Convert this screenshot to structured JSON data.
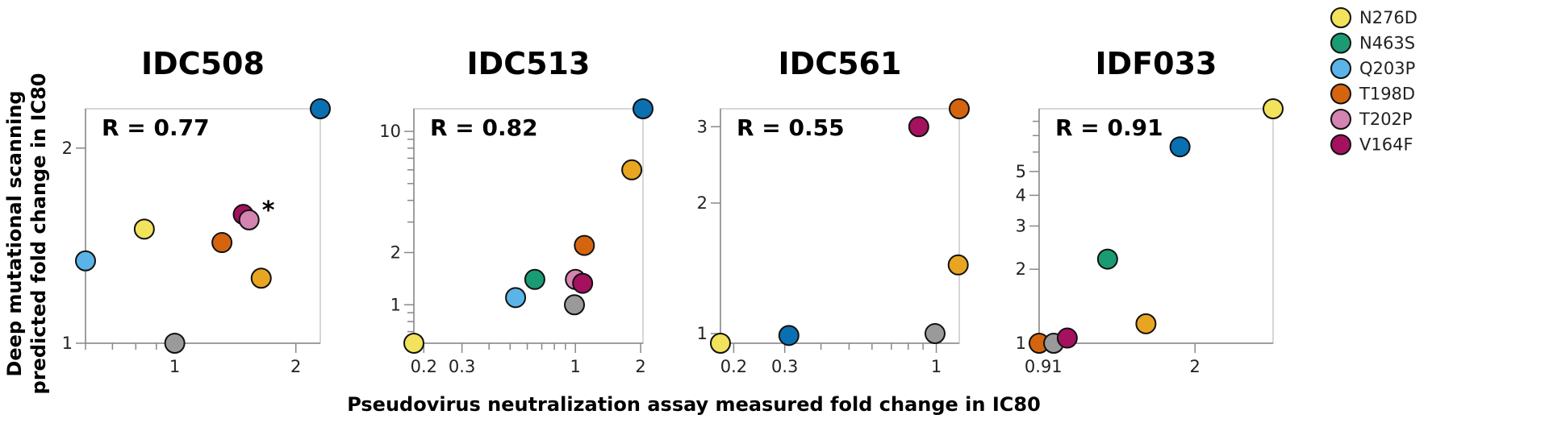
{
  "chart_data": {
    "type": "scatter",
    "xlabel": "Pseudovirus neutralization assay measured fold change in IC80",
    "ylabel": [
      "Deep mutational scanning",
      "predicted fold change in IC80"
    ],
    "scale": "log",
    "grid": false,
    "legend_position": "right",
    "colors": {
      "N276D": "#f2e25c",
      "N463S": "#1a9b73",
      "Q203P": "#5ab4e8",
      "T198D": "#d5640f",
      "T202P": "#d583b0",
      "V164F": "#a4115e",
      "unlabeled_orange": "#e8a521",
      "unlabeled_blue": "#0b70b2",
      "unlabeled_gray": "#9a9a9a"
    },
    "legend": [
      "N276D",
      "N463S",
      "Q203P",
      "T198D",
      "T202P",
      "V164F"
    ],
    "panels": [
      {
        "title": "IDC508",
        "r_label": "R  = 0.77",
        "xlim": [
          0.6,
          2.3
        ],
        "ylim": [
          1.0,
          2.3
        ],
        "xticks_major": [
          1,
          2
        ],
        "xtick_labels": [
          "1",
          "2"
        ],
        "xticks_minor": [
          0.6,
          0.7,
          0.8,
          0.9,
          1,
          2
        ],
        "yticks_major": [
          1,
          2
        ],
        "ytick_labels": [
          "1",
          "2"
        ],
        "yticks_minor": [],
        "points": [
          {
            "key": "N276D",
            "x": 0.84,
            "y": 1.5
          },
          {
            "key": "Q203P",
            "x": 0.6,
            "y": 1.34
          },
          {
            "key": "T198D",
            "x": 1.31,
            "y": 1.43
          },
          {
            "key": "V164F",
            "x": 1.48,
            "y": 1.58
          },
          {
            "key": "T202P",
            "x": 1.53,
            "y": 1.55,
            "annotation": "*"
          },
          {
            "key": "unlabeled_orange",
            "x": 1.64,
            "y": 1.26
          },
          {
            "key": "unlabeled_gray",
            "x": 1.0,
            "y": 1.0
          },
          {
            "key": "unlabeled_blue",
            "x": 2.3,
            "y": 2.3
          }
        ]
      },
      {
        "title": "IDC513",
        "r_label": "R  = 0.82",
        "xlim": [
          0.18,
          2.05
        ],
        "ylim": [
          0.6,
          13.5
        ],
        "xticks_major": [
          0.2,
          0.3,
          1,
          2
        ],
        "xtick_labels": [
          "0.2",
          "0.3",
          "1",
          "2"
        ],
        "xticks_minor": [
          0.4,
          0.5,
          0.6,
          0.7,
          0.8,
          0.9
        ],
        "yticks_major": [
          1,
          2,
          10
        ],
        "ytick_labels": [
          "1",
          "2",
          "10"
        ],
        "yticks_minor": [
          0.7,
          0.8,
          0.9,
          3,
          4,
          5,
          6,
          7,
          8,
          9
        ],
        "points": [
          {
            "key": "N276D",
            "x": 0.18,
            "y": 0.6
          },
          {
            "key": "Q203P",
            "x": 0.53,
            "y": 1.1
          },
          {
            "key": "N463S",
            "x": 0.65,
            "y": 1.4
          },
          {
            "key": "unlabeled_gray",
            "x": 0.99,
            "y": 1.0
          },
          {
            "key": "T202P",
            "x": 1.0,
            "y": 1.4
          },
          {
            "key": "V164F",
            "x": 1.08,
            "y": 1.33
          },
          {
            "key": "T198D",
            "x": 1.1,
            "y": 2.2
          },
          {
            "key": "unlabeled_orange",
            "x": 1.82,
            "y": 6.0
          },
          {
            "key": "unlabeled_blue",
            "x": 2.05,
            "y": 13.5
          }
        ]
      },
      {
        "title": "IDC561",
        "r_label": "R  = 0.55",
        "xlim": [
          0.18,
          1.2
        ],
        "ylim": [
          0.95,
          3.3
        ],
        "xticks_major": [
          0.2,
          0.3,
          1
        ],
        "xtick_labels": [
          "0.2",
          "0.3",
          "1"
        ],
        "xticks_minor": [
          0.4,
          0.5,
          0.6,
          0.7,
          0.8,
          0.9
        ],
        "yticks_major": [
          1,
          2,
          3
        ],
        "ytick_labels": [
          "1",
          "2",
          "3"
        ],
        "yticks_minor": [],
        "points": [
          {
            "key": "N276D",
            "x": 0.18,
            "y": 0.95
          },
          {
            "key": "unlabeled_blue",
            "x": 0.31,
            "y": 0.99
          },
          {
            "key": "V164F",
            "x": 0.87,
            "y": 3.0
          },
          {
            "key": "T198D",
            "x": 1.2,
            "y": 3.3
          },
          {
            "key": "unlabeled_orange",
            "x": 1.19,
            "y": 1.44
          },
          {
            "key": "unlabeled_gray",
            "x": 0.99,
            "y": 1.0
          }
        ]
      },
      {
        "title": "IDF033",
        "r_label": "R  = 0.91",
        "xlim": [
          0.89,
          3.0
        ],
        "ylim": [
          1.0,
          9.0
        ],
        "xticks_major": [
          0.91,
          2
        ],
        "xtick_labels": [
          "0.91",
          "2"
        ],
        "xticks_minor": [],
        "yticks_major": [
          1,
          2,
          3,
          4,
          5
        ],
        "ytick_labels": [
          "1",
          "2",
          "3",
          "4",
          "5"
        ],
        "yticks_minor": [
          6,
          7,
          8
        ],
        "points": [
          {
            "key": "T198D",
            "x": 0.89,
            "y": 1.0
          },
          {
            "key": "unlabeled_gray",
            "x": 0.96,
            "y": 1.0
          },
          {
            "key": "V164F",
            "x": 1.03,
            "y": 1.05
          },
          {
            "key": "N463S",
            "x": 1.27,
            "y": 2.2
          },
          {
            "key": "unlabeled_orange",
            "x": 1.55,
            "y": 1.2
          },
          {
            "key": "unlabeled_blue",
            "x": 1.85,
            "y": 6.3
          },
          {
            "key": "N276D",
            "x": 3.0,
            "y": 9.0
          }
        ]
      }
    ]
  }
}
